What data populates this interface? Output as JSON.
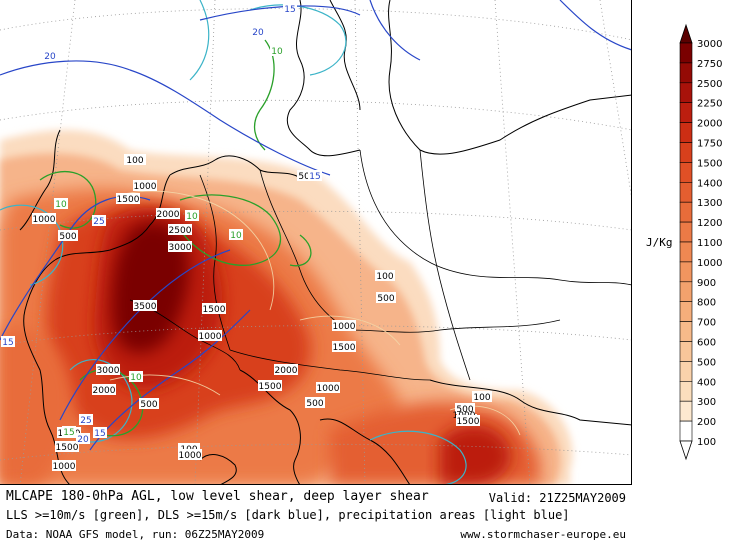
{
  "title_line1": "MLCAPE 180-0hPa AGL, low level shear, deep layer shear",
  "valid_time": "Valid: 21Z25MAY2009",
  "title_line2": "LLS >=10m/s [green], DLS >=15m/s [dark blue], precipitation areas [light blue]",
  "data_source": "Data: NOAA GFS model, run: 06Z25MAY2009",
  "website": "www.stormchaser-europe.eu",
  "colorbar": {
    "unit": "J/Kg",
    "levels": [
      "3000",
      "2750",
      "2500",
      "2250",
      "2000",
      "1750",
      "1500",
      "1400",
      "1300",
      "1200",
      "1100",
      "1000",
      "900",
      "800",
      "700",
      "600",
      "500",
      "400",
      "300",
      "200",
      "100"
    ],
    "colors": [
      "#5a0000",
      "#7a0000",
      "#940a05",
      "#a8120a",
      "#bc1e0f",
      "#cc2e14",
      "#d8401c",
      "#e05026",
      "#e45e30",
      "#e86c3a",
      "#ec7a46",
      "#ef8852",
      "#f1955f",
      "#f3a26d",
      "#f5ae7b",
      "#f7ba8a",
      "#f8c69a",
      "#fad2ab",
      "#fbdebd",
      "#fde9d0",
      "#ffffff"
    ]
  },
  "map_labels": {
    "cape": [
      {
        "text": "100"
      },
      {
        "text": "1000"
      },
      {
        "text": "1500"
      },
      {
        "text": "2000"
      },
      {
        "text": "2500"
      },
      {
        "text": "3000"
      },
      {
        "text": "3500"
      },
      {
        "text": "1500"
      },
      {
        "text": "500"
      },
      {
        "text": "1000"
      },
      {
        "text": "100"
      },
      {
        "text": "500"
      },
      {
        "text": "1000"
      },
      {
        "text": "1500"
      },
      {
        "text": "2000"
      },
      {
        "text": "1500"
      },
      {
        "text": "1000"
      },
      {
        "text": "500"
      },
      {
        "text": "1000"
      },
      {
        "text": "3000"
      },
      {
        "text": "2000"
      },
      {
        "text": "500"
      },
      {
        "text": "1000"
      },
      {
        "text": "1500"
      },
      {
        "text": "1000"
      },
      {
        "text": "500"
      },
      {
        "text": "100"
      },
      {
        "text": "500"
      },
      {
        "text": "1000"
      },
      {
        "text": "1500"
      },
      {
        "text": "100"
      },
      {
        "text": "1000"
      },
      {
        "text": "500"
      }
    ],
    "lls": [
      {
        "text": "10"
      },
      {
        "text": "10"
      },
      {
        "text": "10"
      },
      {
        "text": "10"
      },
      {
        "text": "15"
      },
      {
        "text": "10"
      }
    ],
    "dls": [
      {
        "text": "15"
      },
      {
        "text": "20"
      },
      {
        "text": "20"
      },
      {
        "text": "15"
      },
      {
        "text": "25"
      },
      {
        "text": "15"
      },
      {
        "text": "25"
      },
      {
        "text": "20"
      },
      {
        "text": "15"
      }
    ]
  }
}
